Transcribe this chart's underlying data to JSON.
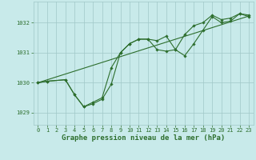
{
  "background_color": "#c8eaea",
  "grid_color": "#a0c8c8",
  "line_color": "#2d6e2d",
  "line_width": 0.8,
  "marker": "D",
  "marker_size": 1.8,
  "xlabel": "Graphe pression niveau de la mer (hPa)",
  "xlabel_fontsize": 6.5,
  "xlabel_color": "#2d6e2d",
  "xlabel_bold": true,
  "tick_fontsize": 5.0,
  "tick_color": "#2d6e2d",
  "xlim": [
    -0.5,
    23.5
  ],
  "ylim": [
    1028.6,
    1032.7
  ],
  "yticks": [
    1029,
    1030,
    1031,
    1032
  ],
  "xticks": [
    0,
    1,
    2,
    3,
    4,
    5,
    6,
    7,
    8,
    9,
    10,
    11,
    12,
    13,
    14,
    15,
    16,
    17,
    18,
    19,
    20,
    21,
    22,
    23
  ],
  "series": [
    {
      "x": [
        0,
        1,
        3,
        4,
        5,
        6,
        7,
        8,
        9,
        10,
        11,
        12,
        13,
        14,
        15,
        16,
        17,
        18,
        19,
        20,
        21,
        22,
        23
      ],
      "y": [
        1030.0,
        1030.05,
        1030.1,
        1029.6,
        1029.2,
        1029.3,
        1029.45,
        1029.95,
        1031.0,
        1031.3,
        1031.45,
        1031.45,
        1031.1,
        1031.05,
        1031.1,
        1030.9,
        1031.3,
        1031.75,
        1032.2,
        1032.0,
        1032.05,
        1032.3,
        1032.2
      ],
      "has_markers": true
    },
    {
      "x": [
        0,
        1,
        3,
        4,
        5,
        6,
        7,
        8,
        9,
        10,
        11,
        12,
        13,
        14,
        15,
        16,
        17,
        18,
        19,
        20,
        21,
        22,
        23
      ],
      "y": [
        1030.0,
        1030.05,
        1030.1,
        1029.6,
        1029.2,
        1029.35,
        1029.5,
        1030.5,
        1031.0,
        1031.3,
        1031.45,
        1031.45,
        1031.4,
        1031.55,
        1031.1,
        1031.6,
        1031.9,
        1032.0,
        1032.25,
        1032.1,
        1032.15,
        1032.3,
        1032.25
      ],
      "has_markers": true
    },
    {
      "x": [
        0,
        23
      ],
      "y": [
        1030.0,
        1032.22
      ],
      "has_markers": false
    }
  ]
}
